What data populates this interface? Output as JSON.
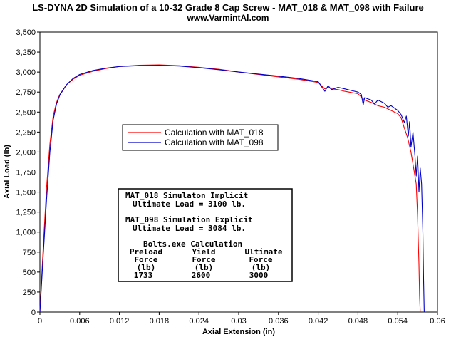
{
  "chart_data": {
    "type": "line",
    "title": "LS-DYNA 2D Simulation of a 10-32 Grade 8 Cap Screw - MAT_018 & MAT_098 with Failure",
    "subtitle": "www.VarmintAl.com",
    "xlabel": "Axial Extension (in)",
    "ylabel": "Axial Load (lb)",
    "xlim": [
      0,
      0.06
    ],
    "ylim": [
      0,
      3500
    ],
    "x_ticks": [
      "0",
      "0.006",
      "0.012",
      "0.018",
      "0.024",
      "0.03",
      "0.036",
      "0.042",
      "0.048",
      "0.054",
      "0.06"
    ],
    "y_ticks": [
      "0",
      "250",
      "500",
      "750",
      "1,000",
      "1,250",
      "1,500",
      "1,750",
      "2,000",
      "2,250",
      "2,500",
      "2,750",
      "3,000",
      "3,250",
      "3,500"
    ],
    "grid": false,
    "legend_position": "center-left",
    "series": [
      {
        "name": "Calculation with MAT_018",
        "color": "#ff0000",
        "points": [
          [
            0,
            0
          ],
          [
            0.0005,
            800
          ],
          [
            0.001,
            1550
          ],
          [
            0.0015,
            2100
          ],
          [
            0.002,
            2450
          ],
          [
            0.0025,
            2620
          ],
          [
            0.003,
            2720
          ],
          [
            0.004,
            2840
          ],
          [
            0.005,
            2910
          ],
          [
            0.006,
            2960
          ],
          [
            0.008,
            3010
          ],
          [
            0.01,
            3045
          ],
          [
            0.012,
            3070
          ],
          [
            0.015,
            3085
          ],
          [
            0.018,
            3090
          ],
          [
            0.021,
            3080
          ],
          [
            0.024,
            3060
          ],
          [
            0.027,
            3035
          ],
          [
            0.03,
            3000
          ],
          [
            0.033,
            2970
          ],
          [
            0.036,
            2940
          ],
          [
            0.039,
            2910
          ],
          [
            0.042,
            2870
          ],
          [
            0.043,
            2790
          ],
          [
            0.0435,
            2810
          ],
          [
            0.044,
            2790
          ],
          [
            0.045,
            2780
          ],
          [
            0.046,
            2760
          ],
          [
            0.047,
            2745
          ],
          [
            0.048,
            2730
          ],
          [
            0.0485,
            2690
          ],
          [
            0.049,
            2650
          ],
          [
            0.05,
            2620
          ],
          [
            0.051,
            2580
          ],
          [
            0.052,
            2560
          ],
          [
            0.053,
            2520
          ],
          [
            0.054,
            2480
          ],
          [
            0.0545,
            2430
          ],
          [
            0.055,
            2300
          ],
          [
            0.0555,
            2180
          ],
          [
            0.056,
            2000
          ],
          [
            0.0565,
            1750
          ],
          [
            0.0568,
            1600
          ],
          [
            0.057,
            1200
          ],
          [
            0.0572,
            600
          ],
          [
            0.0573,
            200
          ],
          [
            0.0574,
            0
          ]
        ]
      },
      {
        "name": "Calculation with MAT_098",
        "color": "#0000cc",
        "points": [
          [
            0,
            0
          ],
          [
            0.0005,
            700
          ],
          [
            0.001,
            1400
          ],
          [
            0.0015,
            2000
          ],
          [
            0.002,
            2400
          ],
          [
            0.0025,
            2600
          ],
          [
            0.003,
            2710
          ],
          [
            0.004,
            2840
          ],
          [
            0.005,
            2920
          ],
          [
            0.006,
            2970
          ],
          [
            0.008,
            3020
          ],
          [
            0.01,
            3050
          ],
          [
            0.012,
            3070
          ],
          [
            0.015,
            3080
          ],
          [
            0.018,
            3084
          ],
          [
            0.021,
            3075
          ],
          [
            0.024,
            3055
          ],
          [
            0.027,
            3030
          ],
          [
            0.03,
            3000
          ],
          [
            0.033,
            2975
          ],
          [
            0.036,
            2950
          ],
          [
            0.039,
            2920
          ],
          [
            0.042,
            2880
          ],
          [
            0.0425,
            2820
          ],
          [
            0.043,
            2760
          ],
          [
            0.0435,
            2830
          ],
          [
            0.044,
            2780
          ],
          [
            0.045,
            2810
          ],
          [
            0.046,
            2790
          ],
          [
            0.047,
            2770
          ],
          [
            0.048,
            2750
          ],
          [
            0.0485,
            2720
          ],
          [
            0.0488,
            2590
          ],
          [
            0.049,
            2680
          ],
          [
            0.05,
            2650
          ],
          [
            0.0505,
            2600
          ],
          [
            0.051,
            2650
          ],
          [
            0.052,
            2610
          ],
          [
            0.0525,
            2560
          ],
          [
            0.053,
            2580
          ],
          [
            0.054,
            2520
          ],
          [
            0.0545,
            2470
          ],
          [
            0.055,
            2370
          ],
          [
            0.0553,
            2450
          ],
          [
            0.0556,
            2200
          ],
          [
            0.0558,
            2380
          ],
          [
            0.056,
            2060
          ],
          [
            0.0563,
            2250
          ],
          [
            0.0566,
            1950
          ],
          [
            0.0568,
            1700
          ],
          [
            0.057,
            1950
          ],
          [
            0.0572,
            1500
          ],
          [
            0.0574,
            1800
          ],
          [
            0.0576,
            1600
          ],
          [
            0.0578,
            1000
          ],
          [
            0.0579,
            400
          ],
          [
            0.058,
            0
          ]
        ]
      }
    ],
    "legend": [
      "Calculation with MAT_018",
      "Calculation with MAT_098"
    ],
    "annotation": {
      "lines": [
        "MAT_018 Simulaton Implicit",
        "Ultimate Load = 3100 lb.",
        "MAT_098 Simulation Explicit",
        "Ultimate Load = 3084 lb.",
        "Bolts.exe Calculation"
      ],
      "table": {
        "headers": [
          [
            "Preload",
            "Force",
            "(lb)"
          ],
          [
            "Yield",
            "Force",
            "(lb)"
          ],
          [
            "Ultimate",
            "Force",
            "(lb)"
          ]
        ],
        "values": [
          "1733",
          "2600",
          "3000"
        ]
      }
    }
  }
}
